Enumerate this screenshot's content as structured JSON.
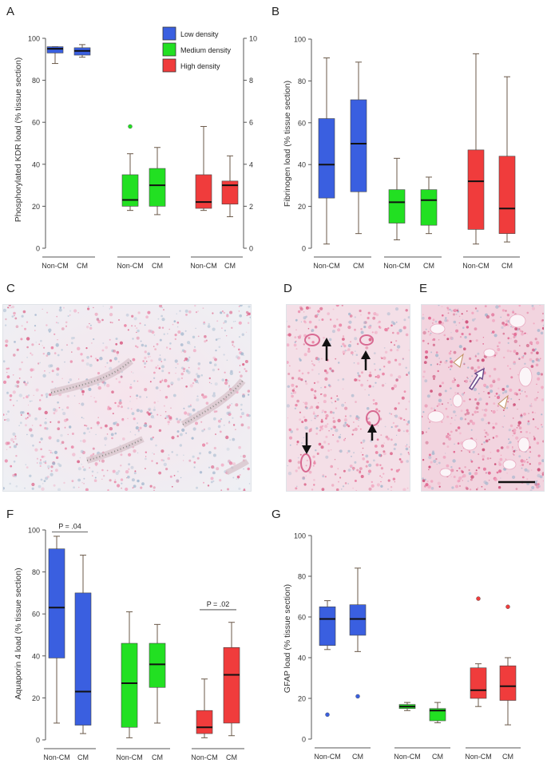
{
  "panels": {
    "A": {
      "letter": "A",
      "ylabel": "Phosphorylated KDR load (% tissue section)",
      "yticks": [
        "0",
        "20",
        "40",
        "60",
        "80",
        "100"
      ],
      "yticks_right": [
        "0",
        "2",
        "4",
        "6",
        "8",
        "10"
      ],
      "legend": [
        "Low density",
        "Medium density",
        "High density"
      ],
      "xlabels": [
        "Non-CM",
        "CM",
        "Non-CM",
        "CM",
        "Non-CM",
        "CM"
      ]
    },
    "B": {
      "letter": "B",
      "ylabel": "Fibrinogen load (% tissue section)",
      "yticks": [
        "0",
        "20",
        "40",
        "60",
        "80",
        "100"
      ],
      "xlabels": [
        "Non-CM",
        "CM",
        "Non-CM",
        "CM",
        "Non-CM",
        "CM"
      ]
    },
    "C": {
      "letter": "C"
    },
    "D": {
      "letter": "D"
    },
    "E": {
      "letter": "E"
    },
    "F": {
      "letter": "F",
      "ylabel": "Aquaporin 4 load (% tissue section)",
      "yticks": [
        "0",
        "20",
        "40",
        "60",
        "80",
        "100"
      ],
      "xlabels": [
        "Non-CM",
        "CM",
        "Non-CM",
        "CM",
        "Non-CM",
        "CM"
      ],
      "pvalues": [
        "P = .04",
        "P = .02"
      ]
    },
    "G": {
      "letter": "G",
      "ylabel": "GFAP load (% tissue section)",
      "yticks": [
        "0",
        "20",
        "40",
        "60",
        "80",
        "100"
      ],
      "xlabels": [
        "Non-CM",
        "CM",
        "Non-CM",
        "CM",
        "Non-CM",
        "CM"
      ]
    }
  },
  "colors": {
    "low": "#3a5fe0",
    "medium": "#22e022",
    "high": "#f03c3c",
    "axis": "#555555",
    "whisker": "#6b5a4a",
    "stain": "#e23a6e"
  },
  "chart_data": [
    {
      "type": "box",
      "panel": "A",
      "title": "",
      "ylabel": "Phosphorylated KDR load (% tissue section)",
      "ylim": [
        0,
        100
      ],
      "ylim_right": [
        0,
        10
      ],
      "groups": [
        "Non-CM",
        "CM",
        "Non-CM",
        "CM",
        "Non-CM",
        "CM"
      ],
      "series_of_group": [
        "Low density",
        "Low density",
        "Medium density",
        "Medium density",
        "High density",
        "High density"
      ],
      "boxes": [
        {
          "min": 88,
          "q1": 93,
          "median": 95,
          "q3": 96,
          "max": 96,
          "outliers": []
        },
        {
          "min": 91,
          "q1": 92,
          "median": 94,
          "q3": 95.5,
          "max": 97,
          "outliers": []
        },
        {
          "min": 1.8,
          "q1": 2.0,
          "median": 2.3,
          "q3": 3.5,
          "max": 4.5,
          "outliers": [
            5.8
          ]
        },
        {
          "min": 1.6,
          "q1": 2.0,
          "median": 3.0,
          "q3": 3.8,
          "max": 4.8,
          "outliers": []
        },
        {
          "min": 1.8,
          "q1": 1.9,
          "median": 2.2,
          "q3": 3.5,
          "max": 5.8,
          "outliers": []
        },
        {
          "min": 1.5,
          "q1": 2.1,
          "median": 3.0,
          "q3": 3.2,
          "max": 4.4,
          "outliers": []
        }
      ],
      "axis_of_group": [
        "left",
        "left",
        "right",
        "right",
        "right",
        "right"
      ],
      "legend": [
        "Low density",
        "Medium density",
        "High density"
      ]
    },
    {
      "type": "box",
      "panel": "B",
      "ylabel": "Fibrinogen load (% tissue section)",
      "ylim": [
        0,
        100
      ],
      "groups": [
        "Non-CM",
        "CM",
        "Non-CM",
        "CM",
        "Non-CM",
        "CM"
      ],
      "boxes": [
        {
          "min": 2,
          "q1": 24,
          "median": 40,
          "q3": 62,
          "max": 91,
          "outliers": []
        },
        {
          "min": 7,
          "q1": 27,
          "median": 50,
          "q3": 71,
          "max": 89,
          "outliers": []
        },
        {
          "min": 4,
          "q1": 12,
          "median": 22,
          "q3": 28,
          "max": 43,
          "outliers": []
        },
        {
          "min": 7,
          "q1": 11,
          "median": 23,
          "q3": 28,
          "max": 34,
          "outliers": []
        },
        {
          "min": 2,
          "q1": 9,
          "median": 32,
          "q3": 47,
          "max": 93,
          "outliers": []
        },
        {
          "min": 3,
          "q1": 7,
          "median": 19,
          "q3": 44,
          "max": 82,
          "outliers": []
        }
      ]
    },
    {
      "type": "box",
      "panel": "F",
      "ylabel": "Aquaporin 4 load (% tissue section)",
      "ylim": [
        0,
        100
      ],
      "groups": [
        "Non-CM",
        "CM",
        "Non-CM",
        "CM",
        "Non-CM",
        "CM"
      ],
      "boxes": [
        {
          "min": 8,
          "q1": 39,
          "median": 63,
          "q3": 91,
          "max": 97,
          "outliers": []
        },
        {
          "min": 3,
          "q1": 7,
          "median": 23,
          "q3": 70,
          "max": 88,
          "outliers": []
        },
        {
          "min": 1,
          "q1": 6,
          "median": 27,
          "q3": 46,
          "max": 61,
          "outliers": []
        },
        {
          "min": 8,
          "q1": 25,
          "median": 36,
          "q3": 46,
          "max": 55,
          "outliers": []
        },
        {
          "min": 1,
          "q1": 3,
          "median": 6,
          "q3": 14,
          "max": 29,
          "outliers": []
        },
        {
          "min": 2,
          "q1": 8,
          "median": 31,
          "q3": 44,
          "max": 56,
          "outliers": []
        }
      ],
      "annotations": [
        {
          "text": "P = .04",
          "between": [
            0,
            1
          ],
          "y": 99
        },
        {
          "text": "P = .02",
          "between": [
            4,
            5
          ],
          "y": 62
        }
      ]
    },
    {
      "type": "box",
      "panel": "G",
      "ylabel": "GFAP load (% tissue section)",
      "ylim": [
        0,
        100
      ],
      "groups": [
        "Non-CM",
        "CM",
        "Non-CM",
        "CM",
        "Non-CM",
        "CM"
      ],
      "boxes": [
        {
          "min": 44,
          "q1": 46,
          "median": 59,
          "q3": 65,
          "max": 68,
          "outliers": [
            12
          ]
        },
        {
          "min": 43,
          "q1": 51,
          "median": 59,
          "q3": 66,
          "max": 84,
          "outliers": [
            21
          ]
        },
        {
          "min": 14,
          "q1": 15,
          "median": 16,
          "q3": 17,
          "max": 18,
          "outliers": []
        },
        {
          "min": 8,
          "q1": 9,
          "median": 14,
          "q3": 15,
          "max": 18,
          "outliers": []
        },
        {
          "min": 16,
          "q1": 20,
          "median": 24,
          "q3": 35,
          "max": 37,
          "outliers": [
            69
          ]
        },
        {
          "min": 7,
          "q1": 19,
          "median": 26,
          "q3": 36,
          "max": 40,
          "outliers": [
            65
          ]
        }
      ]
    }
  ]
}
